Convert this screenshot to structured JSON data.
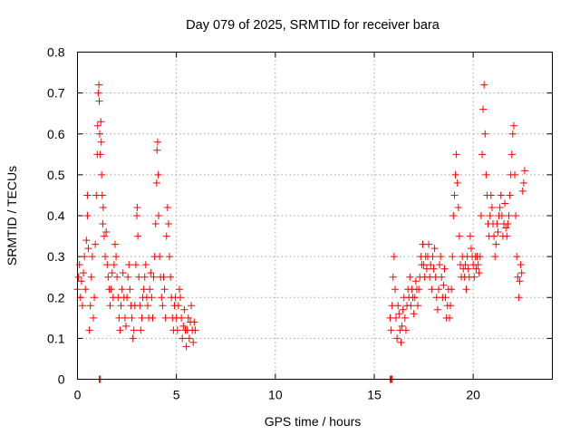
{
  "chart_data": {
    "type": "scatter",
    "title": "Day 079 of 2025, SRMTID for receiver bara",
    "xlabel": "GPS time / hours",
    "ylabel": "SRMTID / TECUs",
    "xlim": [
      0,
      24
    ],
    "ylim": [
      0,
      0.8
    ],
    "xticks": [
      0,
      5,
      10,
      15,
      20
    ],
    "xtick_labels": [
      "0",
      "5",
      "10",
      "15",
      "20"
    ],
    "yticks": [
      0,
      0.1,
      0.2,
      0.3,
      0.4,
      0.5,
      0.6,
      0.7,
      0.8
    ],
    "ytick_labels": [
      "0",
      "0.1",
      "0.2",
      "0.3",
      "0.4",
      "0.5",
      "0.6",
      "0.7",
      "0.8"
    ],
    "grid": true,
    "marker": "+",
    "marker_color": "#ff0000",
    "series": [
      {
        "name": "SRMTID",
        "points": [
          [
            0.0,
            0.22
          ],
          [
            0.05,
            0.25
          ],
          [
            0.1,
            0.28
          ],
          [
            0.15,
            0.2
          ],
          [
            0.2,
            0.24
          ],
          [
            0.25,
            0.18
          ],
          [
            0.3,
            0.26
          ],
          [
            0.35,
            0.3
          ],
          [
            0.4,
            0.22
          ],
          [
            0.45,
            0.34
          ],
          [
            0.5,
            0.4
          ],
          [
            0.5,
            0.45
          ],
          [
            0.55,
            0.32
          ],
          [
            0.6,
            0.12
          ],
          [
            0.65,
            0.18
          ],
          [
            0.7,
            0.25
          ],
          [
            0.75,
            0.3
          ],
          [
            0.8,
            0.15
          ],
          [
            0.85,
            0.2
          ],
          [
            0.9,
            0.33
          ],
          [
            0.95,
            0.45
          ],
          [
            1.0,
            0.55
          ],
          [
            1.02,
            0.62
          ],
          [
            1.05,
            0.7
          ],
          [
            1.08,
            0.72
          ],
          [
            1.1,
            0.68
          ],
          [
            1.12,
            0.6
          ],
          [
            1.15,
            0.55
          ],
          [
            1.18,
            0.63
          ],
          [
            1.2,
            0.58
          ],
          [
            1.22,
            0.5
          ],
          [
            1.25,
            0.45
          ],
          [
            1.28,
            0.38
          ],
          [
            1.3,
            0.42
          ],
          [
            1.35,
            0.35
          ],
          [
            1.4,
            0.3
          ],
          [
            1.45,
            0.36
          ],
          [
            1.5,
            0.28
          ],
          [
            1.55,
            0.25
          ],
          [
            1.6,
            0.22
          ],
          [
            1.65,
            0.18
          ],
          [
            1.7,
            0.22
          ],
          [
            1.75,
            0.26
          ],
          [
            1.8,
            0.2
          ],
          [
            1.85,
            0.28
          ],
          [
            1.9,
            0.33
          ],
          [
            1.95,
            0.3
          ],
          [
            2.0,
            0.25
          ],
          [
            2.05,
            0.2
          ],
          [
            2.1,
            0.15
          ],
          [
            2.15,
            0.12
          ],
          [
            2.2,
            0.18
          ],
          [
            2.25,
            0.22
          ],
          [
            2.3,
            0.26
          ],
          [
            2.35,
            0.2
          ],
          [
            2.4,
            0.15
          ],
          [
            2.45,
            0.13
          ],
          [
            2.5,
            0.2
          ],
          [
            2.55,
            0.25
          ],
          [
            2.6,
            0.28
          ],
          [
            2.65,
            0.22
          ],
          [
            2.7,
            0.18
          ],
          [
            2.75,
            0.15
          ],
          [
            2.8,
            0.1
          ],
          [
            2.85,
            0.12
          ],
          [
            2.9,
            0.18
          ],
          [
            2.95,
            0.28
          ],
          [
            3.0,
            0.4
          ],
          [
            3.02,
            0.42
          ],
          [
            3.05,
            0.35
          ],
          [
            3.1,
            0.25
          ],
          [
            3.15,
            0.18
          ],
          [
            3.2,
            0.12
          ],
          [
            3.25,
            0.15
          ],
          [
            3.3,
            0.2
          ],
          [
            3.35,
            0.22
          ],
          [
            3.4,
            0.25
          ],
          [
            3.45,
            0.28
          ],
          [
            3.5,
            0.2
          ],
          [
            3.55,
            0.18
          ],
          [
            3.6,
            0.15
          ],
          [
            3.65,
            0.22
          ],
          [
            3.7,
            0.26
          ],
          [
            3.75,
            0.2
          ],
          [
            3.8,
            0.15
          ],
          [
            3.85,
            0.25
          ],
          [
            3.9,
            0.3
          ],
          [
            3.95,
            0.38
          ],
          [
            4.0,
            0.48
          ],
          [
            4.02,
            0.56
          ],
          [
            4.05,
            0.58
          ],
          [
            4.08,
            0.5
          ],
          [
            4.1,
            0.4
          ],
          [
            4.15,
            0.3
          ],
          [
            4.2,
            0.25
          ],
          [
            4.25,
            0.2
          ],
          [
            4.3,
            0.18
          ],
          [
            4.35,
            0.25
          ],
          [
            4.4,
            0.22
          ],
          [
            4.45,
            0.15
          ],
          [
            4.5,
            0.35
          ],
          [
            4.55,
            0.42
          ],
          [
            4.6,
            0.38
          ],
          [
            4.65,
            0.3
          ],
          [
            4.7,
            0.25
          ],
          [
            4.75,
            0.2
          ],
          [
            4.8,
            0.15
          ],
          [
            4.85,
            0.12
          ],
          [
            4.9,
            0.18
          ],
          [
            4.95,
            0.2
          ],
          [
            5.0,
            0.15
          ],
          [
            5.05,
            0.12
          ],
          [
            5.1,
            0.18
          ],
          [
            5.15,
            0.22
          ],
          [
            5.2,
            0.2
          ],
          [
            5.25,
            0.15
          ],
          [
            5.3,
            0.1
          ],
          [
            5.35,
            0.13
          ],
          [
            5.4,
            0.17
          ],
          [
            5.45,
            0.12
          ],
          [
            5.5,
            0.08
          ],
          [
            5.55,
            0.12
          ],
          [
            5.6,
            0.15
          ],
          [
            5.65,
            0.1
          ],
          [
            5.7,
            0.14
          ],
          [
            5.75,
            0.18
          ],
          [
            5.8,
            0.12
          ],
          [
            5.85,
            0.09
          ],
          [
            5.9,
            0.14
          ],
          [
            5.95,
            0.12
          ],
          [
            15.8,
            0.15
          ],
          [
            15.85,
            0.12
          ],
          [
            15.9,
            0.18
          ],
          [
            15.95,
            0.25
          ],
          [
            16.0,
            0.3
          ],
          [
            16.05,
            0.22
          ],
          [
            16.1,
            0.15
          ],
          [
            16.15,
            0.1
          ],
          [
            16.2,
            0.18
          ],
          [
            16.25,
            0.16
          ],
          [
            16.3,
            0.12
          ],
          [
            16.35,
            0.09
          ],
          [
            16.4,
            0.13
          ],
          [
            16.45,
            0.17
          ],
          [
            16.5,
            0.2
          ],
          [
            16.55,
            0.15
          ],
          [
            16.6,
            0.12
          ],
          [
            16.65,
            0.18
          ],
          [
            16.7,
            0.22
          ],
          [
            16.75,
            0.2
          ],
          [
            16.8,
            0.25
          ],
          [
            16.85,
            0.18
          ],
          [
            16.9,
            0.22
          ],
          [
            16.95,
            0.2
          ],
          [
            17.0,
            0.16
          ],
          [
            17.05,
            0.2
          ],
          [
            17.1,
            0.24
          ],
          [
            17.15,
            0.22
          ],
          [
            17.2,
            0.18
          ],
          [
            17.25,
            0.22
          ],
          [
            17.3,
            0.25
          ],
          [
            17.35,
            0.3
          ],
          [
            17.4,
            0.28
          ],
          [
            17.45,
            0.33
          ],
          [
            17.5,
            0.28
          ],
          [
            17.55,
            0.25
          ],
          [
            17.6,
            0.3
          ],
          [
            17.65,
            0.27
          ],
          [
            17.7,
            0.3
          ],
          [
            17.75,
            0.33
          ],
          [
            17.8,
            0.25
          ],
          [
            17.85,
            0.28
          ],
          [
            17.9,
            0.22
          ],
          [
            17.95,
            0.3
          ],
          [
            18.0,
            0.27
          ],
          [
            18.05,
            0.32
          ],
          [
            18.1,
            0.25
          ],
          [
            18.15,
            0.2
          ],
          [
            18.2,
            0.17
          ],
          [
            18.25,
            0.22
          ],
          [
            18.3,
            0.28
          ],
          [
            18.35,
            0.3
          ],
          [
            18.4,
            0.25
          ],
          [
            18.45,
            0.2
          ],
          [
            18.5,
            0.23
          ],
          [
            18.55,
            0.27
          ],
          [
            18.6,
            0.2
          ],
          [
            18.65,
            0.15
          ],
          [
            18.7,
            0.18
          ],
          [
            18.75,
            0.22
          ],
          [
            18.8,
            0.15
          ],
          [
            18.85,
            0.18
          ],
          [
            18.9,
            0.22
          ],
          [
            18.95,
            0.3
          ],
          [
            19.0,
            0.4
          ],
          [
            19.05,
            0.45
          ],
          [
            19.1,
            0.5
          ],
          [
            19.15,
            0.55
          ],
          [
            19.2,
            0.48
          ],
          [
            19.25,
            0.42
          ],
          [
            19.3,
            0.35
          ],
          [
            19.35,
            0.28
          ],
          [
            19.4,
            0.25
          ],
          [
            19.45,
            0.3
          ],
          [
            19.5,
            0.27
          ],
          [
            19.55,
            0.25
          ],
          [
            19.6,
            0.28
          ],
          [
            19.65,
            0.22
          ],
          [
            19.7,
            0.3
          ],
          [
            19.75,
            0.27
          ],
          [
            19.8,
            0.25
          ],
          [
            19.85,
            0.35
          ],
          [
            19.9,
            0.32
          ],
          [
            19.95,
            0.3
          ],
          [
            20.0,
            0.28
          ],
          [
            20.05,
            0.25
          ],
          [
            20.1,
            0.3
          ],
          [
            20.15,
            0.27
          ],
          [
            20.2,
            0.3
          ],
          [
            20.25,
            0.28
          ],
          [
            20.3,
            0.26
          ],
          [
            20.35,
            0.3
          ],
          [
            20.4,
            0.4
          ],
          [
            20.45,
            0.55
          ],
          [
            20.5,
            0.66
          ],
          [
            20.55,
            0.72
          ],
          [
            20.6,
            0.6
          ],
          [
            20.65,
            0.5
          ],
          [
            20.7,
            0.45
          ],
          [
            20.75,
            0.38
          ],
          [
            20.8,
            0.35
          ],
          [
            20.85,
            0.4
          ],
          [
            20.9,
            0.45
          ],
          [
            20.95,
            0.42
          ],
          [
            21.0,
            0.38
          ],
          [
            21.05,
            0.35
          ],
          [
            21.1,
            0.3
          ],
          [
            21.15,
            0.33
          ],
          [
            21.2,
            0.38
          ],
          [
            21.25,
            0.36
          ],
          [
            21.3,
            0.4
          ],
          [
            21.35,
            0.42
          ],
          [
            21.4,
            0.45
          ],
          [
            21.45,
            0.4
          ],
          [
            21.5,
            0.35
          ],
          [
            21.55,
            0.38
          ],
          [
            21.6,
            0.43
          ],
          [
            21.65,
            0.37
          ],
          [
            21.7,
            0.35
          ],
          [
            21.75,
            0.38
          ],
          [
            21.8,
            0.4
          ],
          [
            21.85,
            0.45
          ],
          [
            21.9,
            0.5
          ],
          [
            21.95,
            0.55
          ],
          [
            22.0,
            0.6
          ],
          [
            22.05,
            0.62
          ],
          [
            22.1,
            0.5
          ],
          [
            22.15,
            0.4
          ],
          [
            22.2,
            0.3
          ],
          [
            22.25,
            0.25
          ],
          [
            22.3,
            0.2
          ],
          [
            22.35,
            0.24
          ],
          [
            22.4,
            0.28
          ],
          [
            22.45,
            0.26
          ],
          [
            22.5,
            0.46
          ],
          [
            22.55,
            0.48
          ],
          [
            22.6,
            0.51
          ],
          [
            1.1,
            0.0
          ],
          [
            1.15,
            0.0
          ],
          [
            15.8,
            0.0
          ],
          [
            15.85,
            0.0
          ],
          [
            15.9,
            0.0
          ]
        ]
      }
    ]
  }
}
